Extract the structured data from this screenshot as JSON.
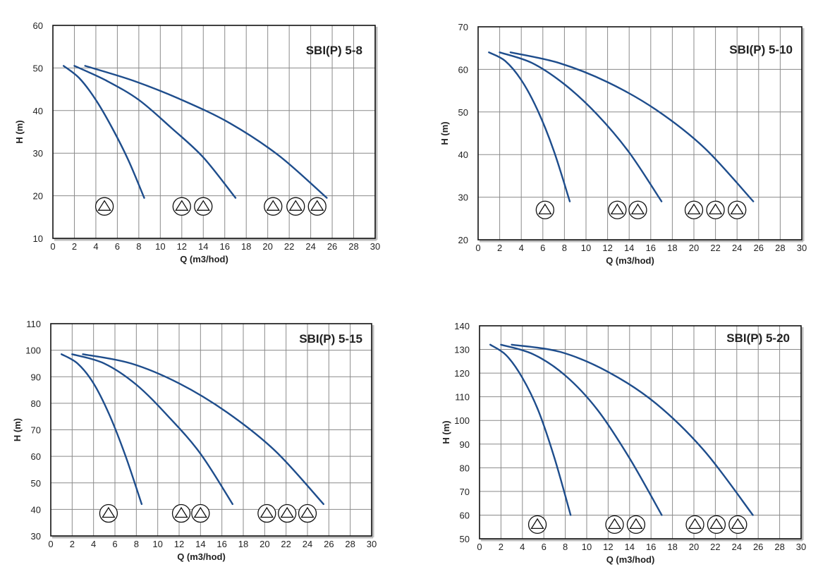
{
  "chart_data": [
    {
      "type": "line",
      "title": "SBI(P) 5-8",
      "xlabel": "Q (m3/hod)",
      "ylabel": "H (m)",
      "xlim": [
        0,
        30
      ],
      "ylim": [
        10,
        60
      ],
      "xticks": [
        0,
        2,
        4,
        6,
        8,
        10,
        12,
        14,
        16,
        18,
        20,
        22,
        24,
        26,
        28,
        30
      ],
      "yticks": [
        10,
        20,
        30,
        40,
        50,
        60
      ],
      "grid": true,
      "color": "#1e4d8c",
      "series": [
        {
          "x": [
            1.0,
            2.5,
            4.0,
            5.5,
            7.0,
            8.5
          ],
          "y": [
            50.5,
            47.5,
            42.5,
            36.0,
            28.5,
            19.5
          ]
        },
        {
          "x": [
            2.0,
            5.0,
            8.0,
            11.0,
            14.0,
            17.0
          ],
          "y": [
            50.5,
            47.0,
            42.5,
            36.0,
            29.0,
            19.5
          ]
        },
        {
          "x": [
            3.0,
            7.5,
            12.0,
            16.5,
            21.0,
            25.5
          ],
          "y": [
            50.5,
            47.0,
            42.5,
            37.0,
            29.5,
            19.5
          ]
        }
      ],
      "markers": [
        {
          "x": 4.8,
          "y": 17.5,
          "symbol": "triangle-in-circle"
        },
        {
          "x": 12.0,
          "y": 17.5,
          "symbol": "triangle-in-circle"
        },
        {
          "x": 14.0,
          "y": 17.5,
          "symbol": "triangle-in-circle"
        },
        {
          "x": 20.5,
          "y": 17.5,
          "symbol": "triangle-in-circle"
        },
        {
          "x": 22.6,
          "y": 17.5,
          "symbol": "triangle-in-circle"
        },
        {
          "x": 24.6,
          "y": 17.5,
          "symbol": "triangle-in-circle"
        }
      ]
    },
    {
      "type": "line",
      "title": "SBI(P) 5-10",
      "xlabel": "Q (m3/hod)",
      "ylabel": "H (m)",
      "xlim": [
        0,
        30
      ],
      "ylim": [
        20,
        70
      ],
      "xticks": [
        0,
        2,
        4,
        6,
        8,
        10,
        12,
        14,
        16,
        18,
        20,
        22,
        24,
        26,
        28,
        30
      ],
      "yticks": [
        20,
        30,
        40,
        50,
        60,
        70
      ],
      "grid": true,
      "color": "#1e4d8c",
      "series": [
        {
          "x": [
            1.0,
            2.5,
            4.0,
            5.5,
            7.0,
            8.5
          ],
          "y": [
            64.0,
            62.0,
            57.5,
            50.5,
            41.0,
            29.0
          ]
        },
        {
          "x": [
            2.0,
            5.0,
            8.0,
            11.0,
            14.0,
            17.0
          ],
          "y": [
            64.0,
            61.5,
            56.5,
            49.5,
            40.5,
            29.0
          ]
        },
        {
          "x": [
            3.0,
            7.5,
            12.0,
            16.5,
            21.0,
            25.5
          ],
          "y": [
            64.0,
            61.5,
            57.0,
            50.5,
            41.5,
            29.0
          ]
        }
      ],
      "markers": [
        {
          "x": 6.2,
          "y": 27.0,
          "symbol": "triangle-in-circle"
        },
        {
          "x": 12.9,
          "y": 27.0,
          "symbol": "triangle-in-circle"
        },
        {
          "x": 14.8,
          "y": 27.0,
          "symbol": "triangle-in-circle"
        },
        {
          "x": 20.0,
          "y": 27.0,
          "symbol": "triangle-in-circle"
        },
        {
          "x": 22.0,
          "y": 27.0,
          "symbol": "triangle-in-circle"
        },
        {
          "x": 24.0,
          "y": 27.0,
          "symbol": "triangle-in-circle"
        }
      ]
    },
    {
      "type": "line",
      "title": "SBI(P) 5-15",
      "xlabel": "Q (m3/hod)",
      "ylabel": "H (m)",
      "xlim": [
        0,
        30
      ],
      "ylim": [
        30,
        110
      ],
      "xticks": [
        0,
        2,
        4,
        6,
        8,
        10,
        12,
        14,
        16,
        18,
        20,
        22,
        24,
        26,
        28,
        30
      ],
      "yticks": [
        30,
        40,
        50,
        60,
        70,
        80,
        90,
        100,
        110
      ],
      "grid": true,
      "color": "#1e4d8c",
      "series": [
        {
          "x": [
            1.0,
            2.5,
            4.0,
            5.5,
            7.0,
            8.5
          ],
          "y": [
            98.5,
            95.0,
            87.5,
            75.5,
            60.0,
            42.0
          ]
        },
        {
          "x": [
            2.0,
            5.0,
            8.0,
            11.0,
            14.0,
            17.0
          ],
          "y": [
            98.5,
            95.0,
            87.0,
            75.0,
            61.0,
            42.0
          ]
        },
        {
          "x": [
            3.0,
            7.5,
            12.0,
            16.5,
            21.0,
            25.5
          ],
          "y": [
            98.5,
            95.0,
            87.5,
            76.5,
            62.0,
            42.0
          ]
        }
      ],
      "markers": [
        {
          "x": 5.4,
          "y": 38.5,
          "symbol": "triangle-in-circle"
        },
        {
          "x": 12.2,
          "y": 38.5,
          "symbol": "triangle-in-circle"
        },
        {
          "x": 14.0,
          "y": 38.5,
          "symbol": "triangle-in-circle"
        },
        {
          "x": 20.2,
          "y": 38.5,
          "symbol": "triangle-in-circle"
        },
        {
          "x": 22.1,
          "y": 38.5,
          "symbol": "triangle-in-circle"
        },
        {
          "x": 24.0,
          "y": 38.5,
          "symbol": "triangle-in-circle"
        }
      ]
    },
    {
      "type": "line",
      "title": "SBI(P) 5-20",
      "xlabel": "Q (m3/hod)",
      "ylabel": "H (m)",
      "xlim": [
        0,
        30
      ],
      "ylim": [
        50,
        140
      ],
      "xticks": [
        0,
        2,
        4,
        6,
        8,
        10,
        12,
        14,
        16,
        18,
        20,
        22,
        24,
        26,
        28,
        30
      ],
      "yticks": [
        50,
        60,
        70,
        80,
        90,
        100,
        110,
        120,
        130,
        140
      ],
      "grid": true,
      "color": "#1e4d8c",
      "series": [
        {
          "x": [
            1.0,
            2.5,
            4.0,
            5.5,
            7.0,
            8.5
          ],
          "y": [
            132.0,
            127.5,
            118.0,
            104.0,
            84.0,
            60.0
          ]
        },
        {
          "x": [
            2.0,
            5.0,
            8.0,
            11.0,
            14.0,
            17.0
          ],
          "y": [
            132.0,
            128.0,
            119.0,
            104.5,
            84.0,
            60.0
          ]
        },
        {
          "x": [
            3.0,
            7.5,
            12.0,
            16.5,
            21.0,
            25.5
          ],
          "y": [
            132.0,
            129.0,
            120.5,
            107.0,
            87.0,
            60.0
          ]
        }
      ],
      "markers": [
        {
          "x": 5.4,
          "y": 56.0,
          "symbol": "triangle-in-circle"
        },
        {
          "x": 12.6,
          "y": 56.0,
          "symbol": "triangle-in-circle"
        },
        {
          "x": 14.6,
          "y": 56.0,
          "symbol": "triangle-in-circle"
        },
        {
          "x": 20.1,
          "y": 56.0,
          "symbol": "triangle-in-circle"
        },
        {
          "x": 22.1,
          "y": 56.0,
          "symbol": "triangle-in-circle"
        },
        {
          "x": 24.1,
          "y": 56.0,
          "symbol": "triangle-in-circle"
        }
      ]
    }
  ]
}
